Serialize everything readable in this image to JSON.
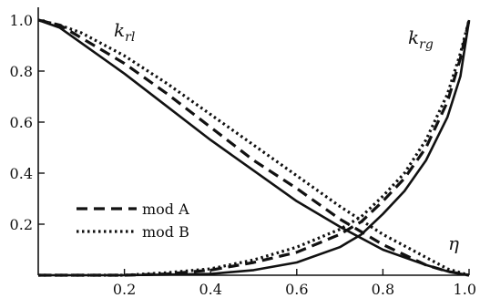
{
  "chart_data": {
    "type": "line",
    "xlim": [
      0,
      1
    ],
    "ylim": [
      0,
      1.05
    ],
    "x_ticks": [
      "0.2",
      "0.4",
      "0.6",
      "0.8",
      "1.0"
    ],
    "y_ticks": [
      "0.2",
      "0.4",
      "0.6",
      "0.8",
      "1.0"
    ],
    "x_tick_values": [
      0.2,
      0.4,
      0.6,
      0.8,
      1.0
    ],
    "y_tick_values": [
      0.2,
      0.4,
      0.6,
      0.8,
      1.0
    ],
    "grid": false,
    "legend_position": "lower-left",
    "annotations": {
      "krl": {
        "base": "k",
        "sub": "rl"
      },
      "krg": {
        "base": "k",
        "sub": "rg"
      },
      "eta": "η"
    },
    "series": [
      {
        "group": "krl",
        "style": "solid",
        "x": [
          0,
          0.05,
          0.1,
          0.2,
          0.3,
          0.4,
          0.5,
          0.6,
          0.7,
          0.8,
          0.9,
          0.95,
          1.0
        ],
        "y": [
          1.0,
          0.97,
          0.91,
          0.79,
          0.66,
          0.53,
          0.41,
          0.29,
          0.19,
          0.1,
          0.04,
          0.015,
          0.0
        ]
      },
      {
        "group": "krl",
        "style": "dash",
        "name": "mod A",
        "x": [
          0,
          0.05,
          0.1,
          0.2,
          0.3,
          0.4,
          0.5,
          0.6,
          0.7,
          0.8,
          0.9,
          0.95,
          1.0
        ],
        "y": [
          1.0,
          0.98,
          0.93,
          0.83,
          0.71,
          0.58,
          0.45,
          0.34,
          0.22,
          0.12,
          0.04,
          0.015,
          0.0
        ]
      },
      {
        "group": "krl",
        "style": "dot",
        "name": "mod B",
        "x": [
          0,
          0.05,
          0.1,
          0.2,
          0.3,
          0.4,
          0.5,
          0.6,
          0.7,
          0.8,
          0.9,
          0.95,
          1.0
        ],
        "y": [
          1.0,
          0.98,
          0.95,
          0.86,
          0.75,
          0.63,
          0.51,
          0.39,
          0.27,
          0.16,
          0.07,
          0.025,
          0.0
        ]
      },
      {
        "group": "krg",
        "style": "solid",
        "x": [
          0,
          0.2,
          0.4,
          0.5,
          0.6,
          0.7,
          0.75,
          0.8,
          0.85,
          0.9,
          0.95,
          0.98,
          1.0
        ],
        "y": [
          0.0,
          0.0,
          0.005,
          0.02,
          0.05,
          0.11,
          0.16,
          0.24,
          0.33,
          0.45,
          0.62,
          0.78,
          1.0
        ]
      },
      {
        "group": "krg",
        "style": "dash",
        "x": [
          0,
          0.2,
          0.3,
          0.4,
          0.5,
          0.6,
          0.7,
          0.75,
          0.8,
          0.85,
          0.9,
          0.95,
          0.98,
          1.0
        ],
        "y": [
          0.0,
          0.0,
          0.005,
          0.02,
          0.05,
          0.09,
          0.16,
          0.21,
          0.29,
          0.38,
          0.5,
          0.68,
          0.85,
          1.0
        ]
      },
      {
        "group": "krg",
        "style": "dot",
        "x": [
          0,
          0.2,
          0.3,
          0.4,
          0.5,
          0.6,
          0.7,
          0.75,
          0.8,
          0.85,
          0.9,
          0.95,
          0.98,
          1.0
        ],
        "y": [
          0.0,
          0.0,
          0.01,
          0.025,
          0.06,
          0.11,
          0.18,
          0.23,
          0.31,
          0.4,
          0.53,
          0.71,
          0.87,
          1.0
        ]
      }
    ],
    "legend": [
      {
        "label": "mod A",
        "style": "dash"
      },
      {
        "label": "mod B",
        "style": "dot"
      }
    ]
  }
}
